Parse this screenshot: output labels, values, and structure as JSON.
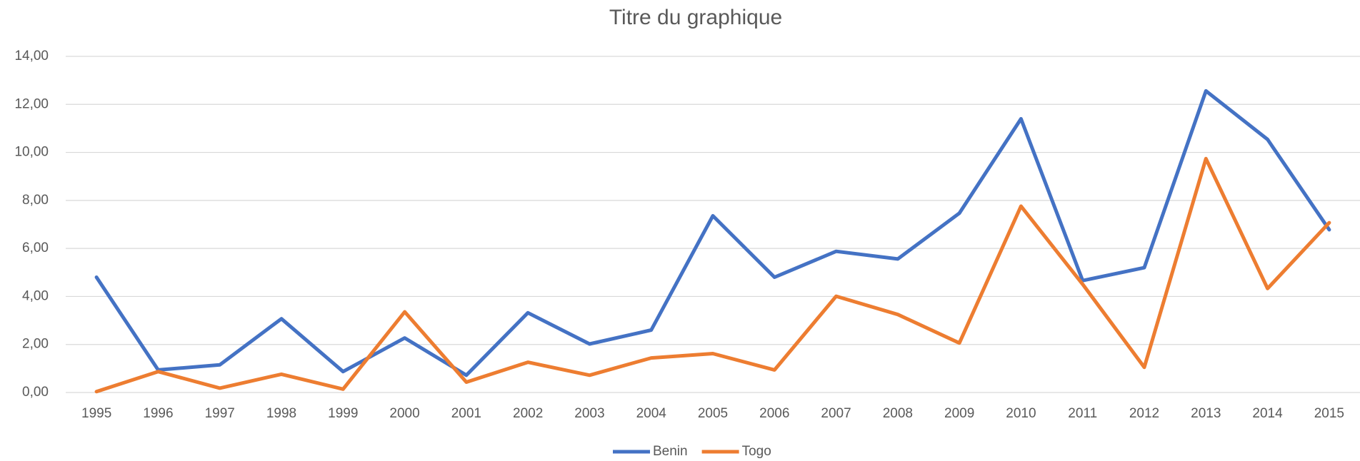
{
  "chart_data": {
    "type": "line",
    "title": "Titre du graphique",
    "categories": [
      "1995",
      "1996",
      "1997",
      "1998",
      "1999",
      "2000",
      "2001",
      "2002",
      "2003",
      "2004",
      "2005",
      "2006",
      "2007",
      "2008",
      "2009",
      "2010",
      "2011",
      "2012",
      "2013",
      "2014",
      "2015"
    ],
    "series": [
      {
        "name": "Benin",
        "color": "#4472c4",
        "values": [
          4.8,
          0.94,
          1.15,
          3.07,
          0.87,
          2.27,
          0.72,
          3.32,
          2.02,
          2.6,
          7.36,
          4.8,
          5.88,
          5.56,
          7.47,
          11.4,
          4.66,
          5.2,
          12.56,
          10.54,
          6.78
        ]
      },
      {
        "name": "Togo",
        "color": "#ed7d31",
        "values": [
          0.04,
          0.87,
          0.18,
          0.76,
          0.14,
          3.36,
          0.43,
          1.26,
          0.72,
          1.44,
          1.62,
          0.94,
          4.01,
          3.25,
          2.06,
          7.76,
          4.51,
          1.05,
          9.74,
          4.33,
          7.07
        ]
      }
    ],
    "ylim": [
      0,
      14
    ],
    "yticks": [
      {
        "value": 0,
        "label": "0,00"
      },
      {
        "value": 2,
        "label": "2,00"
      },
      {
        "value": 4,
        "label": "4,00"
      },
      {
        "value": 6,
        "label": "6,00"
      },
      {
        "value": 8,
        "label": "8,00"
      },
      {
        "value": 10,
        "label": "10,00"
      },
      {
        "value": 12,
        "label": "12,00"
      },
      {
        "value": 14,
        "label": "14,00"
      }
    ],
    "grid": true,
    "legend": "bottom"
  }
}
